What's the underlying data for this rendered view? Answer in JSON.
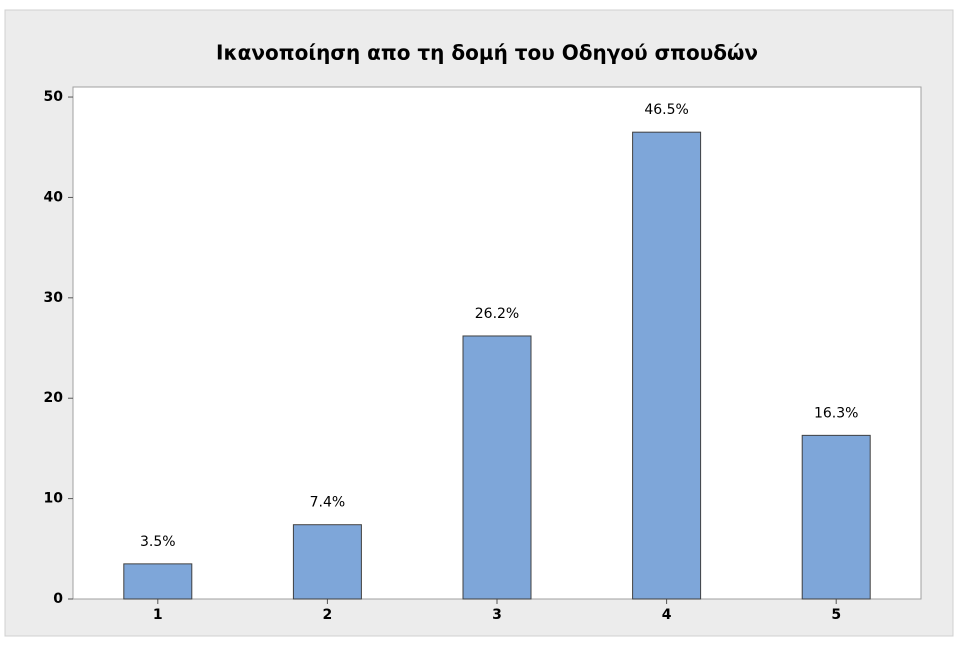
{
  "chart_data": {
    "type": "bar",
    "title": "Ικανοποίηση απο τη δομή του Οδηγού σπουδών",
    "categories": [
      "1",
      "2",
      "3",
      "4",
      "5"
    ],
    "values": [
      3.5,
      7.4,
      26.2,
      46.5,
      16.3
    ],
    "value_labels": [
      "3.5%",
      "7.4%",
      "26.2%",
      "46.5%",
      "16.3%"
    ],
    "color": "#7ea6d9",
    "ylim": [
      0,
      51
    ],
    "yticks": [
      0,
      10,
      20,
      30,
      40,
      50
    ]
  }
}
